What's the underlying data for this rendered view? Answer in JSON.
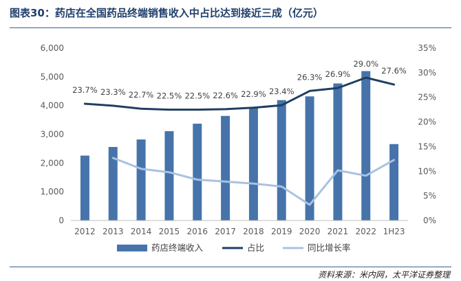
{
  "header": {
    "title": "图表30：药店在全国药品终端销售收入中占比达到接近三成（亿元）"
  },
  "footer": {
    "source": "资料来源：米内网，太平洋证券整理"
  },
  "colors": {
    "bar": "#4674aa",
    "share_line": "#1f3e63",
    "growth_line": "#a9c1e3",
    "axis": "#bfbfbf",
    "rule": "#355f92"
  },
  "chart_data": {
    "type": "bar",
    "categories": [
      "2012",
      "2013",
      "2014",
      "2015",
      "2016",
      "2017",
      "2018",
      "2019",
      "2020",
      "2021",
      "2022",
      "1H23"
    ],
    "series": [
      {
        "name": "药店终端收入",
        "type": "bar",
        "axis": "left",
        "values": [
          2260,
          2560,
          2820,
          3110,
          3370,
          3640,
          3920,
          4190,
          4320,
          4770,
          5200,
          2660
        ]
      },
      {
        "name": "占比",
        "type": "line",
        "axis": "right",
        "values": [
          23.7,
          23.3,
          22.7,
          22.5,
          22.5,
          22.6,
          22.9,
          23.4,
          26.3,
          26.9,
          29.0,
          27.6
        ],
        "labels": [
          "23.7%",
          "23.3%",
          "22.7%",
          "22.5%",
          "22.5%",
          "22.6%",
          "22.9%",
          "23.4%",
          "26.3%",
          "26.9%",
          "29.0%",
          "27.6%"
        ]
      },
      {
        "name": "同比增长率",
        "type": "line",
        "axis": "right",
        "values": [
          null,
          12.7,
          10.5,
          9.8,
          8.3,
          7.9,
          7.5,
          6.9,
          3.2,
          10.2,
          9.1,
          12.3
        ]
      }
    ],
    "y_left": {
      "min": 0,
      "max": 6000,
      "ticks": [
        "0",
        "1,000",
        "2,000",
        "3,000",
        "4,000",
        "5,000",
        "6,000"
      ]
    },
    "y_right": {
      "min": 0,
      "max": 35,
      "ticks": [
        "0%",
        "5%",
        "10%",
        "15%",
        "20%",
        "25%",
        "30%",
        "35%"
      ]
    },
    "grid": false,
    "legend_position": "bottom"
  }
}
